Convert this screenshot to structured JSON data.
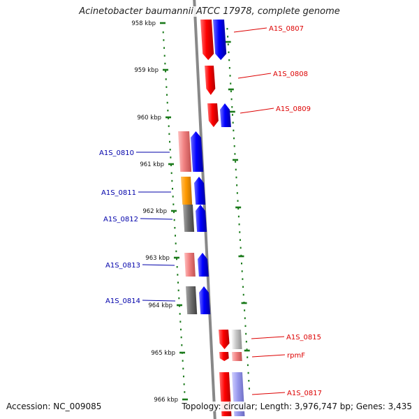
{
  "title": "Acinetobacter baumannii ATCC 17978, complete genome",
  "footer": {
    "accession": "Accession: NC_009085",
    "topology": "Topology: circular; Length: 3,976,747 bp; Genes: 3,435"
  },
  "colors": {
    "backbone": "#7f7f7f",
    "tick": "#1a7a1a",
    "label_right": "#dd0000",
    "label_left": "#0000aa"
  },
  "ruler": [
    {
      "label": "958 kbp"
    },
    {
      "label": "959 kbp"
    },
    {
      "label": "960 kbp"
    },
    {
      "label": "961 kbp"
    },
    {
      "label": "962 kbp"
    },
    {
      "label": "963 kbp"
    },
    {
      "label": "964 kbp"
    },
    {
      "label": "965 kbp"
    },
    {
      "label": "966 kbp"
    }
  ],
  "labels": [
    {
      "text": "A1S_0807",
      "side": "right"
    },
    {
      "text": "A1S_0808",
      "side": "right"
    },
    {
      "text": "A1S_0809",
      "side": "right"
    },
    {
      "text": "A1S_0810",
      "side": "left"
    },
    {
      "text": "A1S_0811",
      "side": "left"
    },
    {
      "text": "A1S_0812",
      "side": "left"
    },
    {
      "text": "A1S_0813",
      "side": "left"
    },
    {
      "text": "A1S_0814",
      "side": "left"
    },
    {
      "text": "A1S_0815",
      "side": "right"
    },
    {
      "text": "rpmF",
      "side": "right"
    },
    {
      "text": "A1S_0817",
      "side": "right"
    }
  ]
}
